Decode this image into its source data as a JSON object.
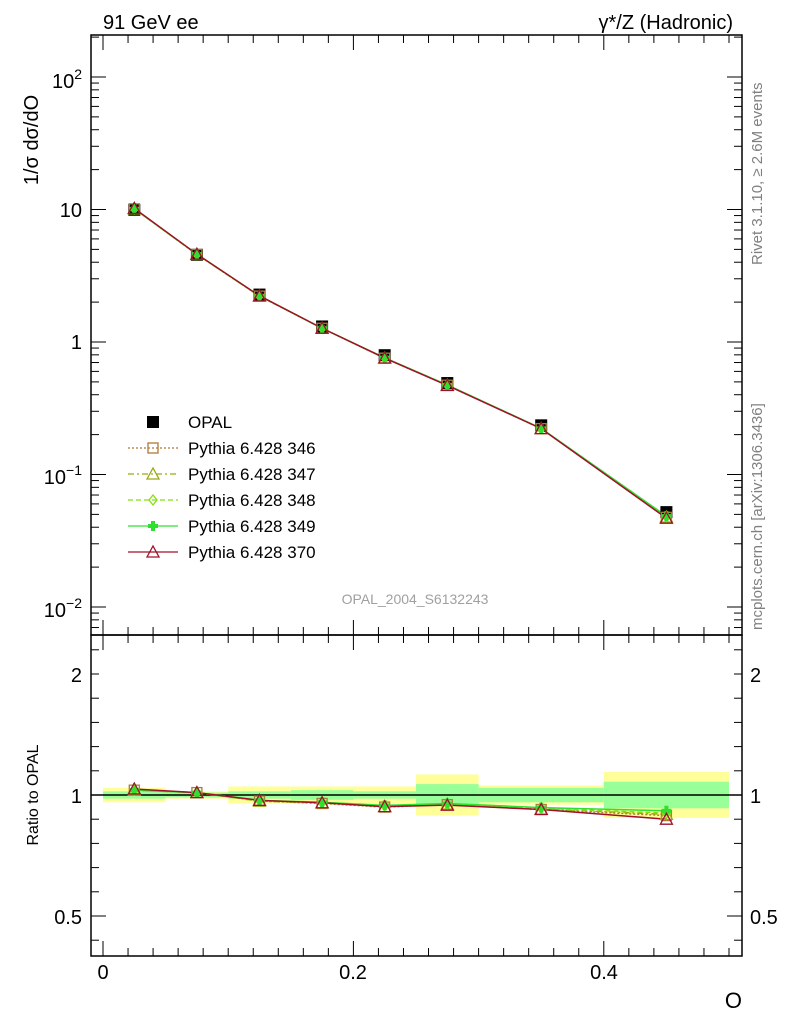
{
  "header": {
    "left": "91 GeV ee",
    "right": "γ*/Z (Hadronic)"
  },
  "side_labels": {
    "rivet": "Rivet 3.1.10, ≥ 2.6M events",
    "mcplots": "mcplots.cern.ch [arXiv:1306.3436]"
  },
  "watermark": "OPAL_2004_S6132243",
  "chart_data": [
    {
      "type": "line",
      "panel": "main",
      "ylabel": "1/σ dσ/dO",
      "yscale": "log",
      "ylim": [
        0.007,
        200
      ],
      "xlim": [
        -0.01,
        0.51
      ],
      "ytick_labels": [
        "10^-2",
        "10^-1",
        "1",
        "10",
        "10^2"
      ],
      "legend_position": "lower-left",
      "bin_edges": [
        0.0,
        0.05,
        0.1,
        0.15,
        0.2,
        0.25,
        0.3,
        0.4,
        0.5
      ],
      "x": [
        0.025,
        0.075,
        0.125,
        0.175,
        0.225,
        0.275,
        0.35,
        0.45
      ],
      "series": [
        {
          "name": "OPAL",
          "color": "#000000",
          "marker": "square-filled",
          "line": "none",
          "values": [
            9.95,
            4.55,
            2.28,
            1.31,
            0.795,
            0.49,
            0.235,
            0.052
          ]
        },
        {
          "name": "Pythia 6.428 346",
          "color": "#b07838",
          "marker": "square-open",
          "line": "dotted",
          "values": [
            10.12,
            4.58,
            2.22,
            1.27,
            0.755,
            0.472,
            0.222,
            0.0475
          ]
        },
        {
          "name": "Pythia 6.428 347",
          "color": "#9aaa10",
          "marker": "triangle-open",
          "line": "dashdot",
          "values": [
            10.12,
            4.58,
            2.22,
            1.27,
            0.757,
            0.473,
            0.222,
            0.0478
          ]
        },
        {
          "name": "Pythia 6.428 348",
          "color": "#88e010",
          "marker": "diamond-open",
          "line": "dashed",
          "values": [
            10.12,
            4.58,
            2.22,
            1.27,
            0.757,
            0.473,
            0.222,
            0.048
          ]
        },
        {
          "name": "Pythia 6.428 349",
          "color": "#30e030",
          "marker": "cross-filled",
          "line": "solid",
          "values": [
            10.12,
            4.6,
            2.23,
            1.27,
            0.76,
            0.474,
            0.223,
            0.0485
          ]
        },
        {
          "name": "Pythia 6.428 370",
          "color": "#a0102a",
          "marker": "triangle-open",
          "line": "solid",
          "values": [
            10.2,
            4.6,
            2.23,
            1.27,
            0.757,
            0.47,
            0.222,
            0.0468
          ]
        }
      ]
    },
    {
      "type": "line",
      "panel": "ratio",
      "ylabel": "Ratio to OPAL",
      "ylim": [
        0.35,
        2.25
      ],
      "xlim": [
        -0.01,
        0.51
      ],
      "ytick_labels": [
        "0.5",
        "1",
        "2"
      ],
      "xlabel": "O",
      "xtick_labels": [
        "0",
        "0.2",
        "0.4"
      ],
      "bin_edges": [
        0.0,
        0.05,
        0.1,
        0.15,
        0.2,
        0.25,
        0.3,
        0.4,
        0.5
      ],
      "x": [
        0.025,
        0.075,
        0.125,
        0.175,
        0.225,
        0.275,
        0.35,
        0.45
      ],
      "bands": {
        "total_uncertainty": {
          "color": "#ffff99",
          "low": [
            0.97,
            0.985,
            0.965,
            0.965,
            0.965,
            0.915,
            0.96,
            0.905
          ],
          "high": [
            1.03,
            1.015,
            1.035,
            1.035,
            1.035,
            1.085,
            1.04,
            1.095
          ]
        },
        "stat_uncertainty": {
          "color": "#99ff99",
          "low": [
            0.985,
            0.99,
            0.985,
            0.98,
            0.985,
            0.955,
            0.97,
            0.945
          ],
          "high": [
            1.015,
            1.01,
            1.015,
            1.02,
            1.015,
            1.045,
            1.03,
            1.055
          ]
        }
      },
      "series": [
        {
          "name": "Pythia 6.428 346",
          "color": "#b07838",
          "values": [
            1.02,
            1.01,
            0.975,
            0.965,
            0.95,
            0.96,
            0.94,
            0.915
          ]
        },
        {
          "name": "Pythia 6.428 347",
          "color": "#9aaa10",
          "values": [
            1.02,
            1.01,
            0.975,
            0.967,
            0.952,
            0.962,
            0.942,
            0.92
          ]
        },
        {
          "name": "Pythia 6.428 348",
          "color": "#88e010",
          "values": [
            1.02,
            1.01,
            0.977,
            0.968,
            0.955,
            0.963,
            0.945,
            0.925
          ]
        },
        {
          "name": "Pythia 6.428 349",
          "color": "#30e030",
          "values": [
            1.02,
            1.01,
            0.978,
            0.97,
            0.957,
            0.965,
            0.948,
            0.935
          ]
        },
        {
          "name": "Pythia 6.428 370",
          "color": "#a0102a",
          "values": [
            1.025,
            1.01,
            0.978,
            0.968,
            0.952,
            0.958,
            0.94,
            0.9
          ]
        }
      ]
    }
  ]
}
